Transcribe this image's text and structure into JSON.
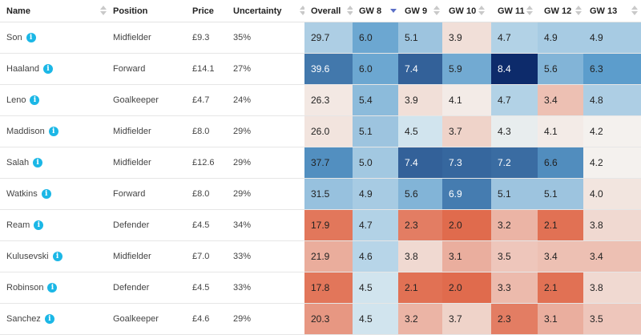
{
  "columns": [
    {
      "label": "Name",
      "sort": "both"
    },
    {
      "label": "Position",
      "sort": "both"
    },
    {
      "label": "Price",
      "sort": "both"
    },
    {
      "label": "Uncertainty",
      "sort": "both"
    },
    {
      "label": "Overall",
      "sort": "both"
    },
    {
      "label": "GW 8",
      "sort": "desc"
    },
    {
      "label": "GW 9",
      "sort": "both"
    },
    {
      "label": "GW 10",
      "sort": "both"
    },
    {
      "label": "GW 11",
      "sort": "both"
    },
    {
      "label": "GW 12",
      "sort": "both"
    },
    {
      "label": "GW 13",
      "sort": "both"
    }
  ],
  "info_icon_glyph": "i",
  "scale_colors": {
    "low": "#e06b4d",
    "mid": "#f4f1ee",
    "high": "#0d2b6b",
    "text_dark": "#222222",
    "text_light": "#ffffff"
  },
  "players": [
    {
      "name": "Son",
      "position": "Midfielder",
      "price": "£9.3",
      "uncertainty": "35%",
      "overall": "29.7",
      "gw": [
        "6.0",
        "5.1",
        "3.9",
        "4.7",
        "4.9",
        "4.9"
      ]
    },
    {
      "name": "Haaland",
      "position": "Forward",
      "price": "£14.1",
      "uncertainty": "27%",
      "overall": "39.6",
      "gw": [
        "6.0",
        "7.4",
        "5.9",
        "8.4",
        "5.6",
        "6.3"
      ]
    },
    {
      "name": "Leno",
      "position": "Goalkeeper",
      "price": "£4.7",
      "uncertainty": "24%",
      "overall": "26.3",
      "gw": [
        "5.4",
        "3.9",
        "4.1",
        "4.7",
        "3.4",
        "4.8"
      ]
    },
    {
      "name": "Maddison",
      "position": "Midfielder",
      "price": "£8.0",
      "uncertainty": "29%",
      "overall": "26.0",
      "gw": [
        "5.1",
        "4.5",
        "3.7",
        "4.3",
        "4.1",
        "4.2"
      ]
    },
    {
      "name": "Salah",
      "position": "Midfielder",
      "price": "£12.6",
      "uncertainty": "29%",
      "overall": "37.7",
      "gw": [
        "5.0",
        "7.4",
        "7.3",
        "7.2",
        "6.6",
        "4.2"
      ]
    },
    {
      "name": "Watkins",
      "position": "Forward",
      "price": "£8.0",
      "uncertainty": "29%",
      "overall": "31.5",
      "gw": [
        "4.9",
        "5.6",
        "6.9",
        "5.1",
        "5.1",
        "4.0"
      ]
    },
    {
      "name": "Ream",
      "position": "Defender",
      "price": "£4.5",
      "uncertainty": "34%",
      "overall": "17.9",
      "gw": [
        "4.7",
        "2.3",
        "2.0",
        "3.2",
        "2.1",
        "3.8"
      ]
    },
    {
      "name": "Kulusevski",
      "position": "Midfielder",
      "price": "£7.0",
      "uncertainty": "33%",
      "overall": "21.9",
      "gw": [
        "4.6",
        "3.8",
        "3.1",
        "3.5",
        "3.4",
        "3.4"
      ]
    },
    {
      "name": "Robinson",
      "position": "Defender",
      "price": "£4.5",
      "uncertainty": "33%",
      "overall": "17.8",
      "gw": [
        "4.5",
        "2.1",
        "2.0",
        "3.3",
        "2.1",
        "3.8"
      ]
    },
    {
      "name": "Sanchez",
      "position": "Goalkeeper",
      "price": "£4.6",
      "uncertainty": "29%",
      "overall": "20.3",
      "gw": [
        "4.5",
        "3.2",
        "3.7",
        "2.3",
        "3.1",
        "3.5"
      ]
    }
  ]
}
